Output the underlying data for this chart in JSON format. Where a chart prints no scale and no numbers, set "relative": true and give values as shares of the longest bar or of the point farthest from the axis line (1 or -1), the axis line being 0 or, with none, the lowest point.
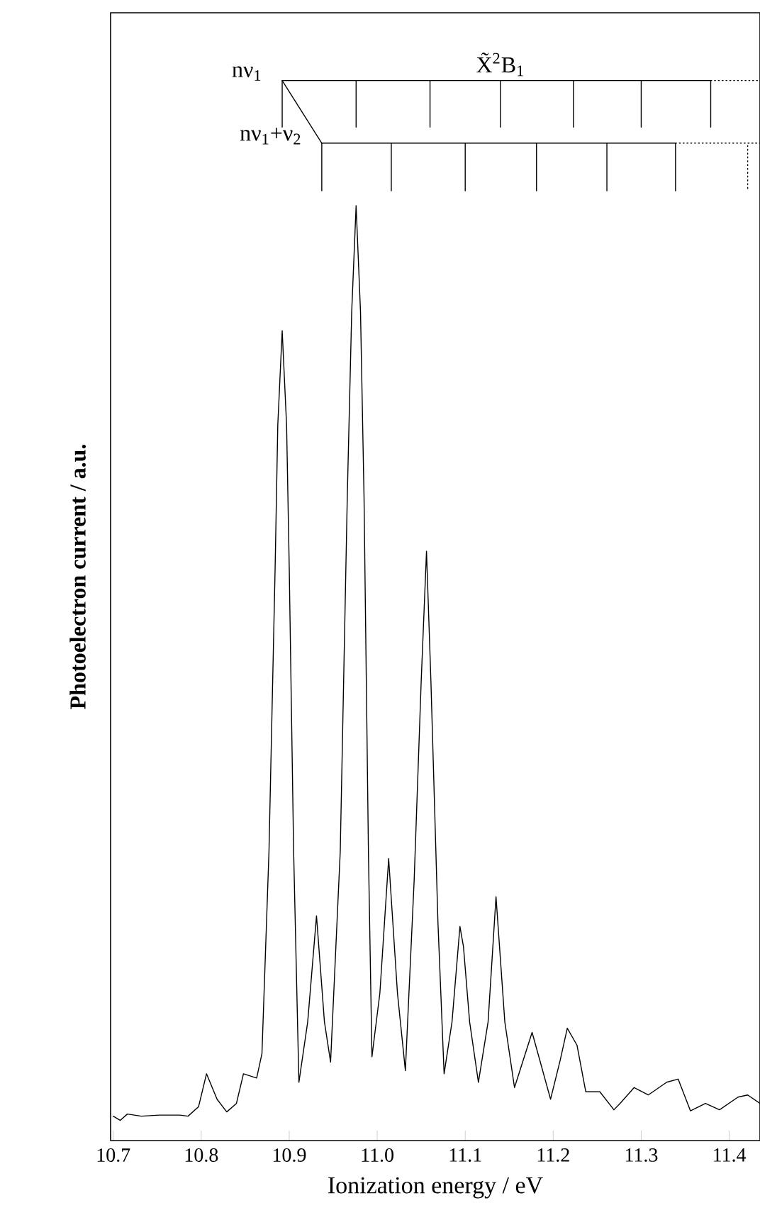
{
  "chart_data": {
    "type": "line",
    "relative": true,
    "xlabel": "Ionization energy / eV",
    "ylabel": "Photoelectron current / a.u.",
    "xlim": [
      10.697,
      11.435
    ],
    "xticks": [
      10.7,
      10.8,
      10.9,
      {
        "value": 11,
        "label": "11.0"
      },
      11.1,
      11.2,
      11.3,
      11.4
    ],
    "marker": "none",
    "annotations": [
      {
        "text": "X̃$^{2}$B$_{1}$",
        "x": 11.14,
        "y": 1
      },
      "nν$_{1}$",
      "nν$_{1}$+ν$_{2}$"
    ],
    "series": [
      {
        "color": "#000000",
        "line_style": "solid",
        "x": [
          10.7,
          10.708,
          10.716,
          10.732,
          10.752,
          10.776,
          10.785,
          10.797,
          10.806,
          10.818,
          10.829,
          10.84,
          10.848,
          10.863,
          10.869,
          10.877,
          10.884,
          10.887,
          10.892,
          10.897,
          10.9,
          10.905,
          10.911,
          10.921,
          10.931,
          10.94,
          10.947,
          10.958,
          10.966,
          10.971,
          10.976,
          10.981,
          10.985,
          10.99,
          10.994,
          11.003,
          11.013,
          11.023,
          11.032,
          11.042,
          11.05,
          11.056,
          11.061,
          11.069,
          11.076,
          11.085,
          11.094,
          11.098,
          11.105,
          11.115,
          11.126,
          11.135,
          11.145,
          11.156,
          11.176,
          11.197,
          11.208,
          11.216,
          11.227,
          11.237,
          11.253,
          11.269,
          11.277,
          11.292,
          11.308,
          11.329,
          11.342,
          11.356,
          11.373,
          11.389,
          11.41,
          11.421,
          11.435
        ],
        "values": [
          0.023,
          0.019,
          0.025,
          0.023,
          0.024,
          0.024,
          0.023,
          0.032,
          0.063,
          0.039,
          0.027,
          0.035,
          0.063,
          0.059,
          0.082,
          0.273,
          0.541,
          0.675,
          0.764,
          0.675,
          0.541,
          0.273,
          0.055,
          0.112,
          0.212,
          0.112,
          0.074,
          0.273,
          0.608,
          0.782,
          0.882,
          0.782,
          0.608,
          0.273,
          0.079,
          0.139,
          0.266,
          0.139,
          0.066,
          0.246,
          0.434,
          0.556,
          0.434,
          0.206,
          0.063,
          0.112,
          0.202,
          0.183,
          0.112,
          0.055,
          0.112,
          0.23,
          0.112,
          0.05,
          0.102,
          0.039,
          0.076,
          0.106,
          0.09,
          0.046,
          0.046,
          0.029,
          0.036,
          0.05,
          0.043,
          0.055,
          0.058,
          0.028,
          0.035,
          0.029,
          0.041,
          0.043,
          0.035
        ]
      },
      {
        "color": "#000000",
        "line_style": "solid",
        "x": [
          10.892,
          10.937
        ],
        "values": [
          1,
          0.941
        ]
      },
      {
        "color": "#000000",
        "line_style": "solid",
        "x": [
          10.892,
          10.892,
          10.976,
          10.976,
          10.976,
          11.06,
          11.06,
          11.06,
          11.14,
          11.14,
          11.14,
          11.223,
          11.223,
          11.223,
          11.3,
          11.3,
          11.3,
          11.379,
          11.379
        ],
        "values": [
          0.956,
          1,
          1,
          0.956,
          1,
          1,
          0.956,
          1,
          1,
          0.956,
          1,
          1,
          0.956,
          1,
          1,
          0.956,
          1,
          1,
          0.956
        ]
      },
      {
        "color": "#000000",
        "line_style": "dotted",
        "x": [
          11.379,
          11.435
        ],
        "values": [
          1,
          1
        ]
      },
      {
        "color": "#000000",
        "line_style": "solid",
        "x": [
          10.937,
          10.937,
          11.016,
          11.016,
          11.016,
          11.1,
          11.1,
          11.1,
          11.181,
          11.181,
          11.181,
          11.261,
          11.261,
          11.261,
          11.339,
          11.339
        ],
        "values": [
          0.896,
          0.941,
          0.941,
          0.896,
          0.941,
          0.941,
          0.896,
          0.941,
          0.941,
          0.896,
          0.941,
          0.941,
          0.896,
          0.941,
          0.941,
          0.896
        ]
      },
      {
        "color": "#000000",
        "line_style": "dotted",
        "x": [
          11.339,
          11.435,
          11.421,
          11.421
        ],
        "values": [
          0.941,
          0.941,
          0.941,
          0.896
        ]
      }
    ]
  }
}
